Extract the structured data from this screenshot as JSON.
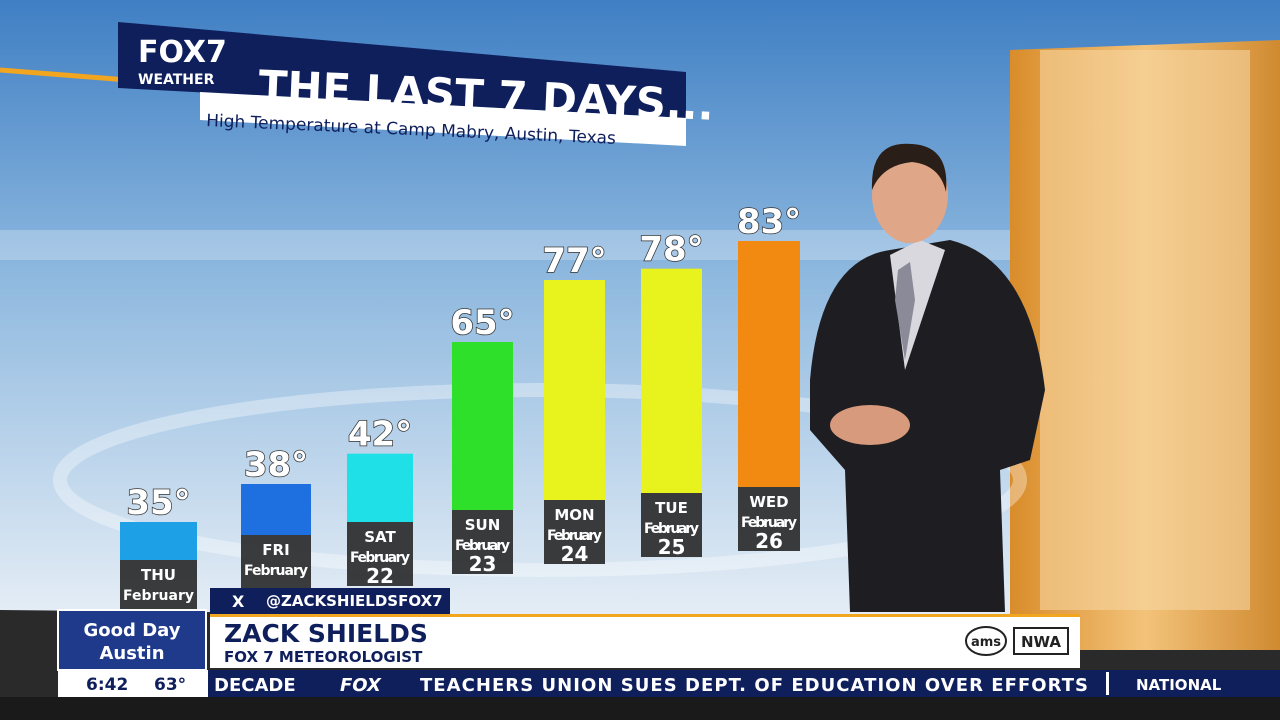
{
  "chart_data": {
    "type": "bar",
    "logo": {
      "main": "FOX7",
      "sub": "WEATHER"
    },
    "title": "THE LAST 7 DAYS...",
    "subtitle": "High Temperature at Camp Mabry, Austin, Texas",
    "categories": [
      "THU",
      "FRI",
      "SAT",
      "SUN",
      "MON",
      "TUE",
      "WED"
    ],
    "months": [
      "February",
      "February",
      "February",
      "February",
      "February",
      "February",
      "February"
    ],
    "days": [
      null,
      null,
      "22",
      "23",
      "24",
      "25",
      "26"
    ],
    "values": [
      35,
      38,
      42,
      65,
      77,
      78,
      83
    ],
    "value_labels": [
      "35°",
      "38°",
      "42°",
      "65°",
      "77°",
      "78°",
      "83°"
    ],
    "colors": [
      "#1ea0e6",
      "#1e6fe0",
      "#1ee0e6",
      "#2fe02a",
      "#e8f21c",
      "#e8f21c",
      "#f28a12"
    ]
  },
  "lower_third": {
    "handle_icon": "X",
    "handle": "@ZACKSHIELDSFOX7",
    "name": "ZACK SHIELDS",
    "role": "FOX 7 METEOROLOGIST",
    "badges": [
      "ams",
      "NWA"
    ]
  },
  "show": {
    "line1": "Good Day",
    "line2": "Austin",
    "time": "6:42",
    "temp": "63°"
  },
  "ticker": {
    "left": "DECADE",
    "brand": "FOX",
    "headline": "TEACHERS UNION SUES DEPT. OF EDUCATION OVER EFFORTS",
    "section": "NATIONAL"
  }
}
